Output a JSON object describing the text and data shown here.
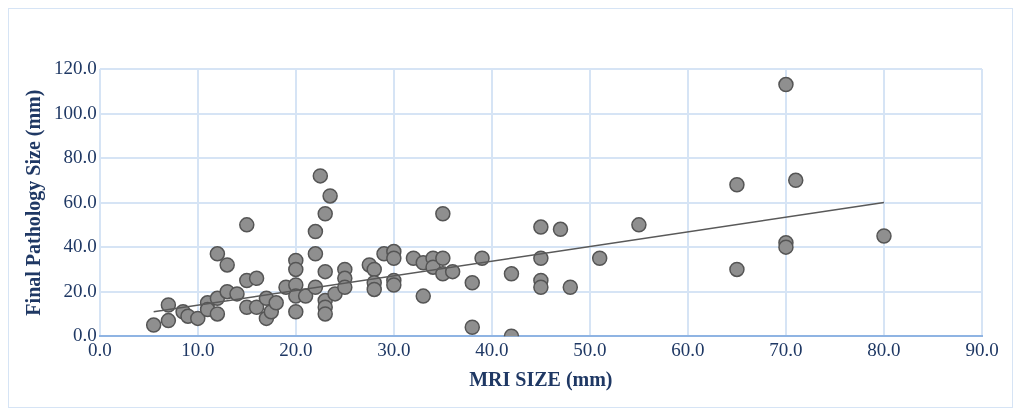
{
  "chart_data": {
    "type": "scatter",
    "xlabel": "MRI SIZE (mm)",
    "ylabel": "Final Pathology Size (mm)",
    "grid": true,
    "legend": false,
    "marker": "circle",
    "xlim": [
      0,
      90
    ],
    "ylim": [
      0,
      120
    ],
    "xticks": [
      {
        "value": 0,
        "label": "0.0"
      },
      {
        "value": 10,
        "label": "10.0"
      },
      {
        "value": 20,
        "label": "20.0"
      },
      {
        "value": 30,
        "label": "30.0"
      },
      {
        "value": 40,
        "label": "40.0"
      },
      {
        "value": 50,
        "label": "50.0"
      },
      {
        "value": 60,
        "label": "60.0"
      },
      {
        "value": 70,
        "label": "70.0"
      },
      {
        "value": 80,
        "label": "80.0"
      },
      {
        "value": 90,
        "label": "90.0"
      }
    ],
    "yticks": [
      {
        "value": 0,
        "label": "0.0"
      },
      {
        "value": 20,
        "label": "20.0"
      },
      {
        "value": 40,
        "label": "40.0"
      },
      {
        "value": 60,
        "label": "60.0"
      },
      {
        "value": 80,
        "label": "80.0"
      },
      {
        "value": 100,
        "label": "100.0"
      },
      {
        "value": 120,
        "label": "120.0"
      }
    ],
    "series": [
      {
        "color": "#8f8f8f",
        "x": [
          5.5,
          7,
          7,
          8.5,
          9,
          10,
          11,
          11,
          12,
          12,
          12,
          13,
          13,
          14,
          15,
          15,
          15,
          16,
          16,
          17,
          17,
          17.5,
          18,
          19,
          20,
          20,
          20,
          20,
          20,
          21,
          22,
          22,
          22,
          22.5,
          23,
          23,
          23,
          23,
          23,
          23.5,
          24,
          25,
          25,
          25,
          27.5,
          28,
          28,
          28,
          29,
          30,
          30,
          30,
          30,
          32,
          33,
          33,
          34,
          34,
          35,
          35,
          35,
          36,
          38,
          38,
          39,
          42,
          42,
          45,
          45,
          45,
          45,
          47,
          48,
          51,
          55,
          65,
          65,
          70,
          70,
          70,
          71,
          80
        ],
        "values": [
          5,
          14,
          7,
          11,
          9,
          8,
          15,
          12,
          37,
          17,
          10,
          32,
          20,
          19,
          50,
          25,
          13,
          26,
          13,
          17,
          8,
          11,
          15,
          22,
          34,
          30,
          23,
          18,
          11,
          18,
          47,
          37,
          22,
          72,
          55,
          29,
          16,
          13,
          10,
          63,
          19,
          30,
          26,
          22,
          32,
          30,
          24,
          21,
          37,
          38,
          35,
          25,
          23,
          35,
          33,
          18,
          35,
          31,
          55,
          35,
          28,
          29,
          24,
          4,
          35,
          28,
          0,
          49,
          35,
          25,
          22,
          48,
          22,
          35,
          50,
          68,
          30,
          113,
          42,
          40,
          70,
          45
        ]
      },
      {
        "type": "line",
        "color": "#595959",
        "marker": "none",
        "x": [
          5.5,
          80
        ],
        "values": [
          11,
          60
        ]
      }
    ]
  }
}
